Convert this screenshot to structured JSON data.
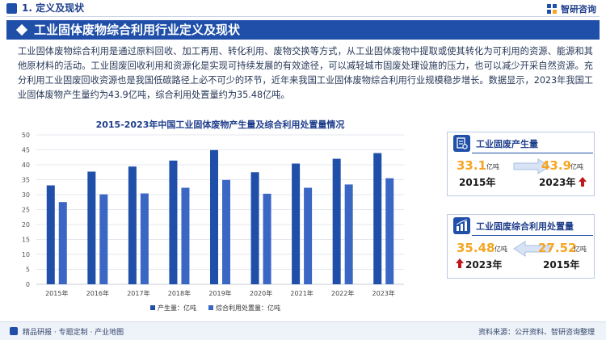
{
  "header": {
    "section": "1. 定义及现状",
    "brand": "智研咨询"
  },
  "banner": {
    "title": "工业固体废物综合利用行业定义及现状"
  },
  "intro": {
    "paragraph": "工业固体废物综合利用是通过原料回收、加工再用、转化利用、废物交换等方式，从工业固体废物中提取或使其转化为可利用的资源、能源和其他原材料的活动。工业固废回收利用和资源化是实现可持续发展的有效途径，可以减轻城市固废处理设施的压力，也可以减少开采自然资源。充分利用工业固废回收资源也是我国低碳路径上必不可少的环节，近年来我国工业固体废物综合利用行业规模稳步增长。数据显示，2023年我国工业固体废物产生量约为43.9亿吨，综合利用处置量约为35.48亿吨。"
  },
  "chart_data": {
    "type": "bar",
    "title": "2015-2023年中国工业固体废物产生量及综合利用处置量情况",
    "categories": [
      "2015年",
      "2016年",
      "2017年",
      "2018年",
      "2019年",
      "2020年",
      "2021年",
      "2022年",
      "2023年"
    ],
    "series": [
      {
        "name": "产生量：亿吨",
        "values": [
          33.1,
          37.7,
          39.4,
          41.4,
          44.9,
          37.5,
          40.4,
          42.0,
          43.9
        ],
        "color": "#1f4fa8"
      },
      {
        "name": "综合利用处置量：亿吨",
        "values": [
          27.52,
          30.1,
          30.4,
          32.3,
          34.9,
          30.3,
          32.3,
          33.4,
          35.48
        ],
        "color": "#3a66c4"
      }
    ],
    "ylim": [
      0,
      50
    ],
    "yticks": [
      0,
      5,
      10,
      15,
      20,
      25,
      30,
      35,
      40,
      45,
      50
    ],
    "grid": true,
    "legend": "bottom-center"
  },
  "card_production": {
    "label": "工业固废产生量",
    "from_value": "33.1",
    "from_unit": "亿吨",
    "from_year": "2015年",
    "to_value": "43.9",
    "to_unit": "亿吨",
    "to_year": "2023年"
  },
  "card_utilization": {
    "label": "工业固废综合利用处置量",
    "from_value": "35.48",
    "from_unit": "亿吨",
    "from_year": "2023年",
    "to_value": "27.52",
    "to_unit": "亿吨",
    "to_year": "2015年"
  },
  "colors": {
    "primary": "#1f4fa8",
    "accent": "#f5a623",
    "up_arrow": "#c0171b"
  },
  "footer": {
    "left": "精品研报 · 专题定制 · 产业地图",
    "source": "资料来源：公开资料、智研咨询整理"
  }
}
